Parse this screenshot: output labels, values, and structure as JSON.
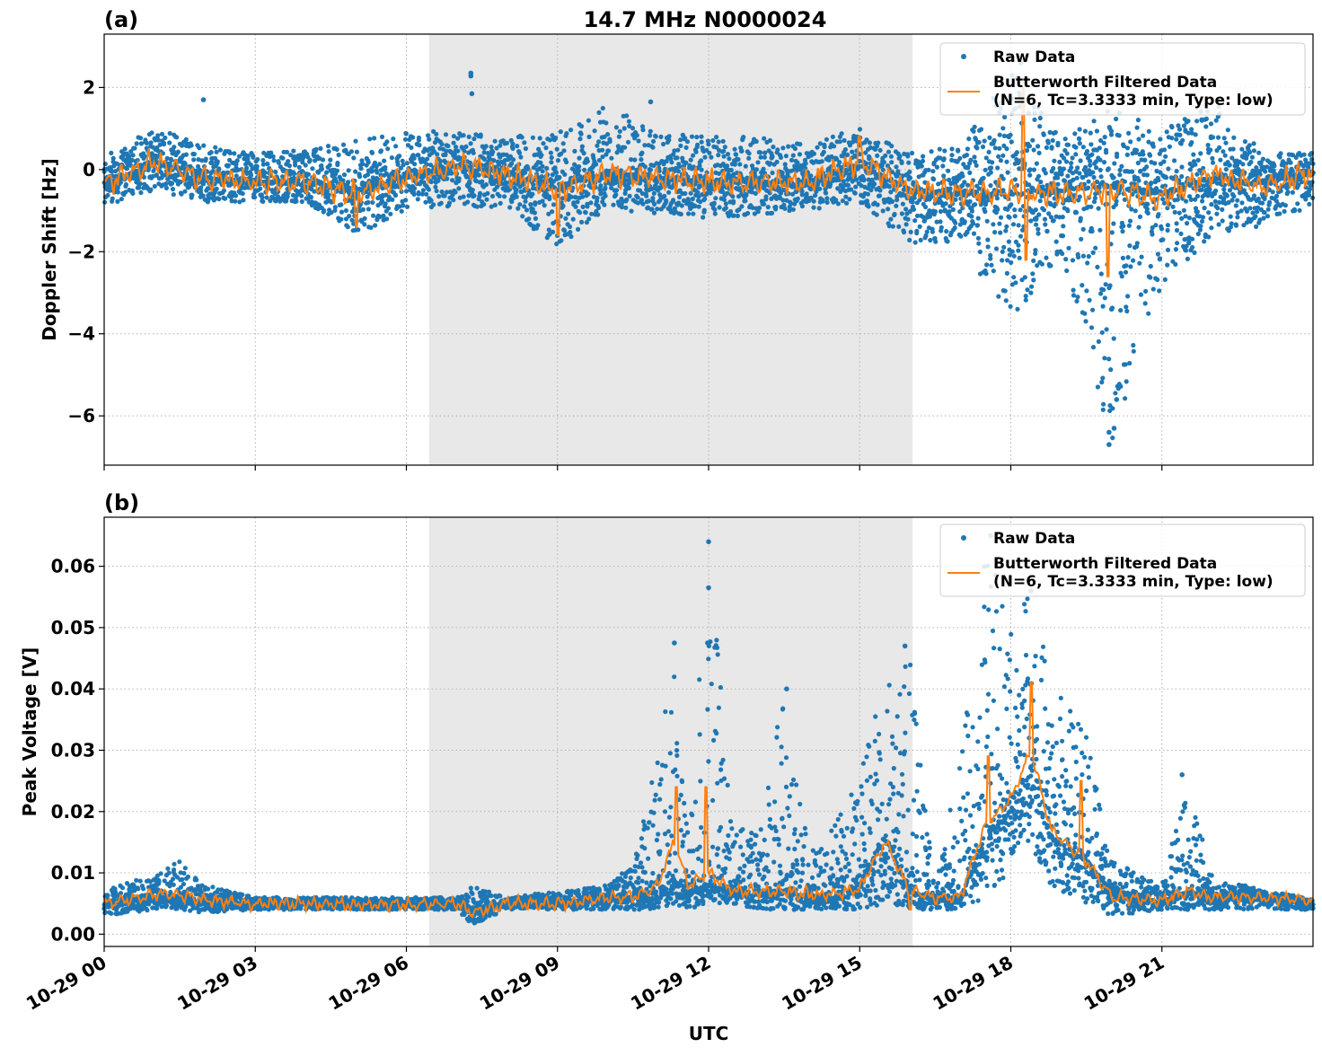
{
  "chart_data": [
    {
      "type": "scatter",
      "panel_label": "(a)",
      "title": "14.7 MHz N0000024",
      "ylabel": "Doppler Shift [Hz]",
      "xlabel": "",
      "x_unit": "hours UTC on 10-29",
      "xlim": [
        0,
        24
      ],
      "ylim": [
        -7.2,
        3.3
      ],
      "yticks": [
        2,
        0,
        -2,
        -4,
        -6
      ],
      "ytick_labels": [
        "2",
        "0",
        "−2",
        "−4",
        "−6"
      ],
      "grid": true,
      "shaded_region": {
        "start": 6.45,
        "end": 16.05
      },
      "legend": {
        "placement": "top-right",
        "entries": [
          "Raw Data",
          "Butterworth Filtered Data",
          "(N=6, Tc=3.3333 min, Type: low)"
        ]
      },
      "series": [
        {
          "name": "Raw Data",
          "kind": "points",
          "color": "#1f77b4",
          "x": [
            0,
            1,
            2,
            3,
            4,
            5,
            6,
            7,
            8,
            9,
            10,
            11,
            12,
            13,
            14,
            15,
            16,
            17,
            18,
            19,
            20,
            21,
            22,
            23,
            24
          ],
          "center": [
            -0.4,
            0.2,
            -0.2,
            -0.3,
            -0.3,
            -0.5,
            -0.2,
            0.1,
            -0.1,
            -0.4,
            -0.1,
            -0.2,
            -0.3,
            -0.3,
            -0.3,
            0.1,
            -0.5,
            -0.6,
            -0.6,
            -0.5,
            -0.4,
            -0.6,
            -0.2,
            -0.3,
            -0.1
          ],
          "low": [
            -0.9,
            -0.5,
            -0.8,
            -0.8,
            -0.8,
            -1.6,
            -1.0,
            -0.9,
            -1.0,
            -1.9,
            -1.0,
            -1.1,
            -1.2,
            -1.1,
            -1.0,
            -0.8,
            -1.8,
            -1.8,
            -3.7,
            -2.0,
            -6.7,
            -2.8,
            -1.6,
            -1.4,
            -0.9
          ],
          "high": [
            0.3,
            1.1,
            0.6,
            0.4,
            0.5,
            0.7,
            0.9,
            1.0,
            0.8,
            0.9,
            1.6,
            0.9,
            0.8,
            0.8,
            0.6,
            1.1,
            0.4,
            0.6,
            2.6,
            0.7,
            1.5,
            1.0,
            1.8,
            0.4,
            0.4
          ],
          "outliers": [
            [
              7.28,
              2.35
            ],
            [
              7.28,
              2.28
            ],
            [
              7.3,
              1.85
            ],
            [
              1.97,
              1.7
            ],
            [
              10.85,
              1.65
            ],
            [
              19.95,
              -6.7
            ],
            [
              19.95,
              -6.4
            ],
            [
              20.05,
              -6.3
            ],
            [
              20.1,
              -5.6
            ],
            [
              20.0,
              -3.4
            ],
            [
              18.2,
              2.6
            ]
          ]
        },
        {
          "name": "Butterworth Filtered Data",
          "kind": "line",
          "color": "#ff7f0e",
          "x": [
            0,
            1,
            2,
            3,
            4,
            5,
            6,
            7,
            8,
            9,
            10,
            11,
            12,
            13,
            14,
            15,
            16,
            17,
            18,
            19,
            20,
            21,
            22,
            23,
            24
          ],
          "y": [
            -0.4,
            0.2,
            -0.2,
            -0.3,
            -0.3,
            -0.6,
            -0.2,
            0.1,
            -0.1,
            -0.5,
            -0.1,
            -0.2,
            -0.3,
            -0.3,
            -0.3,
            0.2,
            -0.5,
            -0.6,
            -0.5,
            -0.6,
            -0.5,
            -0.7,
            -0.1,
            -0.4,
            -0.1
          ],
          "amplitude": 0.35,
          "spikes": [
            [
              18.25,
              2.0
            ],
            [
              18.3,
              -2.2
            ],
            [
              19.93,
              -2.6
            ],
            [
              15.0,
              0.8
            ],
            [
              9.0,
              -1.6
            ],
            [
              5.0,
              -1.4
            ]
          ]
        }
      ]
    },
    {
      "type": "scatter",
      "panel_label": "(b)",
      "title": "",
      "ylabel": "Peak Voltage [V]",
      "xlabel": "UTC",
      "x_unit": "hours UTC on 10-29",
      "xlim": [
        0,
        24
      ],
      "ylim": [
        -0.002,
        0.068
      ],
      "yticks": [
        0.0,
        0.01,
        0.02,
        0.03,
        0.04,
        0.05,
        0.06
      ],
      "ytick_labels": [
        "0.00",
        "0.01",
        "0.02",
        "0.03",
        "0.04",
        "0.05",
        "0.06"
      ],
      "xticks": [
        0,
        3,
        6,
        9,
        12,
        15,
        18,
        21
      ],
      "xtick_labels": [
        "10-29 00",
        "10-29 03",
        "10-29 06",
        "10-29 09",
        "10-29 12",
        "10-29 15",
        "10-29 18",
        "10-29 21"
      ],
      "grid": true,
      "shaded_region": {
        "start": 6.45,
        "end": 16.05
      },
      "legend": {
        "placement": "top-right",
        "entries": [
          "Raw Data",
          "Butterworth Filtered Data",
          "(N=6, Tc=3.3333 min, Type: low)"
        ]
      },
      "series": [
        {
          "name": "Raw Data",
          "kind": "points",
          "color": "#1f77b4",
          "x": [
            0,
            1,
            1.5,
            2,
            3,
            4,
            5,
            6,
            7,
            7.3,
            8,
            9,
            10,
            10.5,
            11,
            11.3,
            11.6,
            12,
            12.5,
            13,
            13.5,
            14,
            14.5,
            15,
            15.5,
            16,
            16.5,
            17,
            17.5,
            18,
            18.4,
            18.8,
            19.5,
            20,
            21,
            21.5,
            22,
            23,
            24
          ],
          "center": [
            0.005,
            0.006,
            0.006,
            0.005,
            0.005,
            0.005,
            0.005,
            0.005,
            0.005,
            0.004,
            0.005,
            0.005,
            0.006,
            0.006,
            0.007,
            0.009,
            0.007,
            0.008,
            0.007,
            0.007,
            0.007,
            0.006,
            0.006,
            0.008,
            0.016,
            0.007,
            0.006,
            0.006,
            0.016,
            0.02,
            0.025,
            0.016,
            0.012,
            0.007,
            0.005,
            0.007,
            0.006,
            0.006,
            0.005
          ],
          "low": [
            0.003,
            0.004,
            0.004,
            0.0035,
            0.004,
            0.004,
            0.004,
            0.004,
            0.004,
            0.0015,
            0.004,
            0.004,
            0.004,
            0.004,
            0.004,
            0.005,
            0.004,
            0.005,
            0.005,
            0.004,
            0.004,
            0.004,
            0.004,
            0.004,
            0.005,
            0.004,
            0.004,
            0.004,
            0.006,
            0.01,
            0.014,
            0.008,
            0.005,
            0.003,
            0.004,
            0.004,
            0.004,
            0.004,
            0.004
          ],
          "high": [
            0.007,
            0.01,
            0.012,
            0.008,
            0.006,
            0.006,
            0.006,
            0.006,
            0.006,
            0.008,
            0.006,
            0.007,
            0.008,
            0.012,
            0.03,
            0.047,
            0.015,
            0.064,
            0.017,
            0.018,
            0.04,
            0.013,
            0.018,
            0.03,
            0.04,
            0.046,
            0.007,
            0.03,
            0.065,
            0.05,
            0.057,
            0.042,
            0.033,
            0.012,
            0.008,
            0.026,
            0.01,
            0.007,
            0.006
          ],
          "outliers": [
            [
              12.0,
              0.064
            ],
            [
              12.0,
              0.0565
            ],
            [
              11.32,
              0.0475
            ],
            [
              11.98,
              0.0475
            ],
            [
              13.55,
              0.04
            ],
            [
              15.9,
              0.047
            ],
            [
              17.6,
              0.065
            ],
            [
              18.4,
              0.056
            ],
            [
              21.4,
              0.026
            ]
          ]
        },
        {
          "name": "Butterworth Filtered Data",
          "kind": "line",
          "color": "#ff7f0e",
          "x": [
            0,
            1,
            1.5,
            2,
            3,
            4,
            5,
            6,
            7,
            7.3,
            8,
            9,
            10,
            10.5,
            11,
            11.3,
            11.6,
            12,
            12.5,
            13,
            13.5,
            14,
            14.5,
            15,
            15.5,
            16,
            16.5,
            17,
            17.5,
            18,
            18.4,
            18.8,
            19.5,
            20,
            21,
            21.5,
            22,
            23,
            24
          ],
          "y": [
            0.005,
            0.0065,
            0.0065,
            0.0055,
            0.005,
            0.005,
            0.0048,
            0.0048,
            0.005,
            0.0035,
            0.005,
            0.005,
            0.006,
            0.006,
            0.008,
            0.015,
            0.008,
            0.01,
            0.007,
            0.007,
            0.007,
            0.0065,
            0.0065,
            0.0075,
            0.015,
            0.007,
            0.006,
            0.006,
            0.018,
            0.022,
            0.03,
            0.017,
            0.012,
            0.006,
            0.0055,
            0.007,
            0.006,
            0.006,
            0.0055
          ],
          "amplitude": 0.0012,
          "spikes": [
            [
              11.35,
              0.024
            ],
            [
              11.95,
              0.024
            ],
            [
              17.55,
              0.029
            ],
            [
              18.4,
              0.041
            ],
            [
              16.0,
              0.004
            ],
            [
              19.4,
              0.025
            ]
          ]
        }
      ]
    }
  ]
}
